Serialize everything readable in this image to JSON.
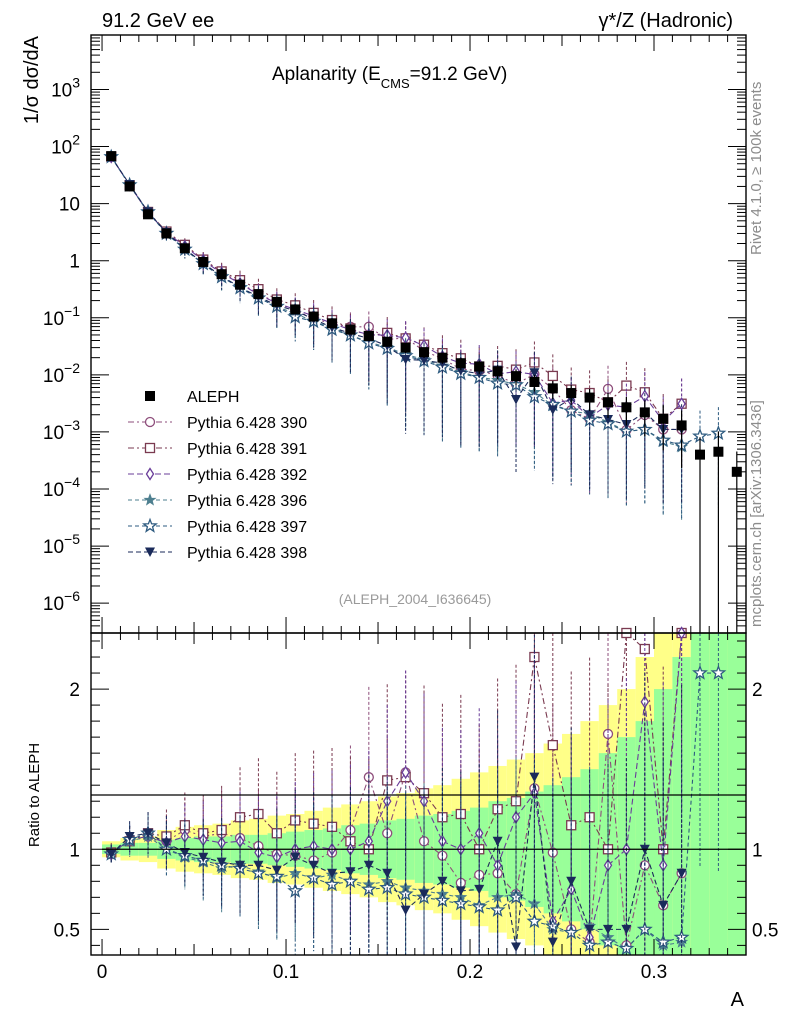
{
  "header": {
    "left": "91.2 GeV ee",
    "right": "γ*/Z (Hadronic)"
  },
  "side_labels": {
    "rivet": "Rivet 4.1.0, ≥ 100k events",
    "mcplots": "mcplots.cern.ch [arXiv:1306.3436]"
  },
  "chart_data": {
    "type": "line",
    "title": "Aplanarity (E_CMS=91.2 GeV)",
    "title_main": "Aplanarity (E",
    "title_sub": "CMS",
    "title_tail": "=91.2 GeV)",
    "analysis_tag": "(ALEPH_2004_I636645)",
    "xlabel": "A",
    "ylabel": "1/σ  dσ/dA",
    "ratio_ylabel": "Ratio to ALEPH",
    "xlim": [
      -0.006,
      0.35
    ],
    "ylim_main": [
      3e-07,
      9000
    ],
    "ylim_ratio": [
      0.34,
      2.35
    ],
    "x_ticks": [
      0,
      0.1,
      0.2,
      0.3
    ],
    "x_tick_labels": [
      "0",
      "0.1",
      "0.2",
      "0.3"
    ],
    "y_ticks_main": [
      {
        "v": 1e-06,
        "base": "10",
        "exp": "−6"
      },
      {
        "v": 1e-05,
        "base": "10",
        "exp": "−5"
      },
      {
        "v": 0.0001,
        "base": "10",
        "exp": "−4"
      },
      {
        "v": 0.001,
        "base": "10",
        "exp": "−3"
      },
      {
        "v": 0.01,
        "base": "10",
        "exp": "−2"
      },
      {
        "v": 0.1,
        "base": "10",
        "exp": "−1"
      },
      {
        "v": 1,
        "base": "1",
        "exp": ""
      },
      {
        "v": 10,
        "base": "10",
        "exp": ""
      },
      {
        "v": 100,
        "base": "10",
        "exp": "2"
      },
      {
        "v": 1000,
        "base": "10",
        "exp": "3"
      }
    ],
    "y_ticks_ratio": [
      {
        "v": 0.5,
        "label": "0.5"
      },
      {
        "v": 1,
        "label": "1"
      },
      {
        "v": 2,
        "label": "2"
      }
    ],
    "x": [
      0.005,
      0.015,
      0.025,
      0.035,
      0.045,
      0.055,
      0.065,
      0.075,
      0.085,
      0.095,
      0.105,
      0.115,
      0.125,
      0.135,
      0.145,
      0.155,
      0.165,
      0.175,
      0.185,
      0.195,
      0.205,
      0.215,
      0.225,
      0.235,
      0.245,
      0.255,
      0.265,
      0.275,
      0.285,
      0.295,
      0.305,
      0.315,
      0.325,
      0.335,
      0.345
    ],
    "data": {
      "name": "ALEPH",
      "values": [
        68,
        20,
        6.5,
        3.0,
        1.65,
        0.95,
        0.58,
        0.38,
        0.26,
        0.19,
        0.14,
        0.105,
        0.08,
        0.062,
        0.048,
        0.038,
        0.03,
        0.025,
        0.02,
        0.016,
        0.014,
        0.0115,
        0.0095,
        0.0075,
        0.0058,
        0.0048,
        0.004,
        0.0033,
        0.0027,
        0.0022,
        0.0017,
        0.0013,
        0.0004,
        0.00045,
        0.0002
      ],
      "band_inner": [
        0.03,
        0.04,
        0.04,
        0.06,
        0.07,
        0.08,
        0.08,
        0.09,
        0.09,
        0.1,
        0.11,
        0.12,
        0.13,
        0.15,
        0.16,
        0.18,
        0.19,
        0.21,
        0.22,
        0.24,
        0.26,
        0.3,
        0.32,
        0.36,
        0.4,
        0.45,
        0.5,
        0.6,
        0.7,
        0.8,
        1.0,
        1.2,
        1.5,
        2.0,
        2.0
      ],
      "band_outer": [
        0.05,
        0.07,
        0.08,
        0.12,
        0.14,
        0.15,
        0.16,
        0.18,
        0.19,
        0.21,
        0.22,
        0.24,
        0.26,
        0.28,
        0.3,
        0.33,
        0.35,
        0.38,
        0.4,
        0.44,
        0.48,
        0.52,
        0.56,
        0.6,
        0.66,
        0.72,
        0.8,
        0.9,
        1.0,
        1.2,
        1.4,
        1.6,
        2.0,
        2.5,
        2.5
      ]
    },
    "series": [
      {
        "name": "Pythia 6.428 390",
        "color": "#8e4e7b",
        "marker": "circle-open",
        "dash": "6,3,2,3",
        "ratio": [
          0.97,
          1.05,
          1.08,
          1.05,
          1.12,
          1.08,
          1.1,
          1.07,
          1.02,
          0.97,
          0.96,
          0.93,
          0.98,
          1.12,
          1.45,
          1.1,
          1.48,
          1.05,
          0.96,
          0.79,
          0.84,
          0.85,
          0.72,
          1.38,
          0.98,
          0.5,
          0.42,
          1.72,
          0.4,
          0.9,
          0.65,
          0.85,
          null,
          null,
          null
        ]
      },
      {
        "name": "Pythia 6.428 391",
        "color": "#7a3a50",
        "marker": "square-open",
        "dash": "6,3,2,3",
        "ratio": [
          0.98,
          1.05,
          1.1,
          1.08,
          1.15,
          1.1,
          1.12,
          1.2,
          1.22,
          1.1,
          1.18,
          1.16,
          1.14,
          1.05,
          1.0,
          1.43,
          1.45,
          1.35,
          1.2,
          1.22,
          1.0,
          1.25,
          1.3,
          2.2,
          1.65,
          1.15,
          1.2,
          1.0,
          2.4,
          2.25,
          1.0,
          2.4,
          null,
          null,
          null
        ]
      },
      {
        "name": "Pythia 6.428 392",
        "color": "#6a3d9a",
        "marker": "diamond-open",
        "dash": "6,3",
        "ratio": [
          0.97,
          1.06,
          1.08,
          1.04,
          1.08,
          1.06,
          1.04,
          1.05,
          0.98,
          0.95,
          1.0,
          1.02,
          1.0,
          1.0,
          1.05,
          1.3,
          1.48,
          1.3,
          1.05,
          1.0,
          1.1,
          0.9,
          1.2,
          1.35,
          0.55,
          0.75,
          0.45,
          0.9,
          1.0,
          1.92,
          0.9,
          2.4,
          null,
          null,
          null
        ]
      },
      {
        "name": "Pythia 6.428 396",
        "color": "#4d7f8f",
        "marker": "star-filled",
        "dash": "4,3",
        "ratio": [
          0.97,
          1.05,
          1.08,
          1.0,
          0.95,
          0.92,
          0.88,
          0.9,
          0.86,
          0.82,
          0.85,
          0.82,
          0.84,
          0.8,
          0.78,
          0.8,
          0.76,
          0.74,
          0.72,
          0.7,
          0.65,
          0.7,
          0.72,
          0.66,
          0.5,
          0.48,
          0.52,
          0.45,
          0.38,
          0.5,
          0.4,
          0.42,
          null,
          null,
          null
        ]
      },
      {
        "name": "Pythia 6.428 397",
        "color": "#2e5b80",
        "marker": "star-open",
        "dash": "4,3",
        "ratio": [
          0.97,
          1.06,
          1.1,
          1.0,
          0.96,
          0.93,
          0.9,
          0.88,
          0.85,
          0.83,
          0.74,
          0.82,
          0.78,
          0.8,
          0.75,
          0.76,
          0.72,
          0.7,
          0.68,
          0.66,
          0.64,
          0.62,
          0.7,
          0.55,
          0.52,
          0.48,
          0.4,
          0.42,
          0.38,
          0.5,
          0.42,
          0.45,
          2.1,
          2.1,
          null
        ]
      },
      {
        "name": "Pythia 6.428 398",
        "color": "#1a2a5a",
        "marker": "triangle-down-filled",
        "dash": "5,3",
        "ratio": [
          0.97,
          1.08,
          1.1,
          1.04,
          0.98,
          0.95,
          0.92,
          0.9,
          0.9,
          0.87,
          0.95,
          0.9,
          0.85,
          0.86,
          0.9,
          0.85,
          0.62,
          0.72,
          0.8,
          0.74,
          0.75,
          1.05,
          0.39,
          1.45,
          0.42,
          0.8,
          0.5,
          0.5,
          0.5,
          1.0,
          0.65,
          0.85,
          null,
          null,
          null
        ]
      }
    ]
  }
}
